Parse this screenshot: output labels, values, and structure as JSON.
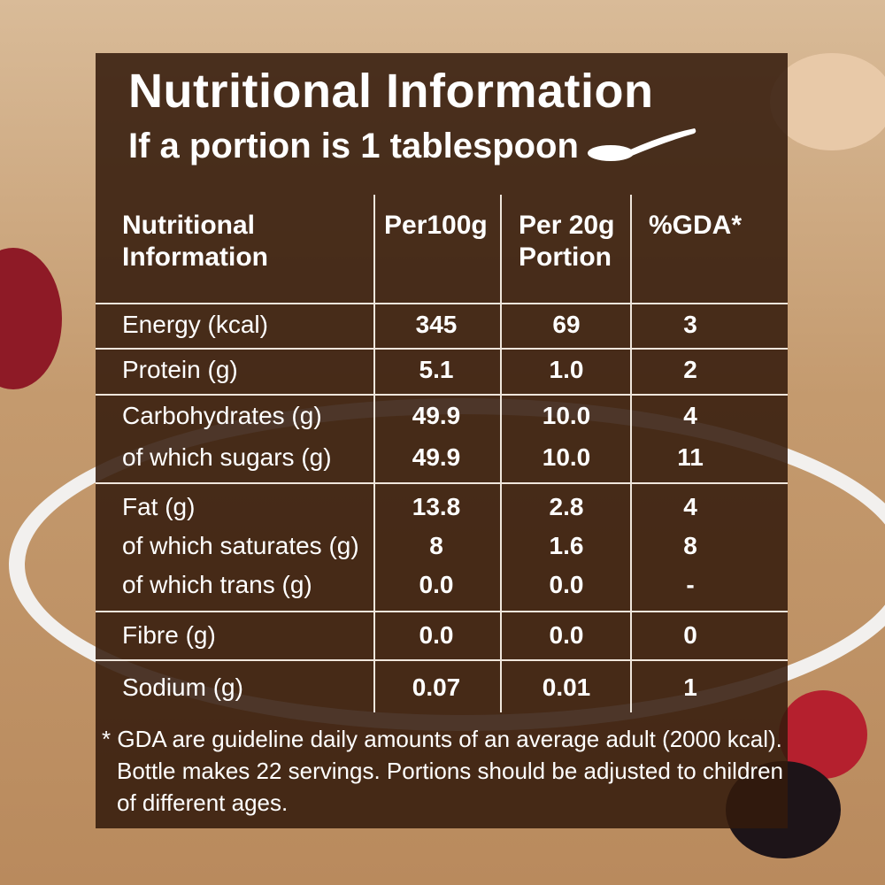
{
  "header": {
    "title": "Nutritional Information",
    "subtitle": "If a portion is 1 tablespoon"
  },
  "table": {
    "headers": [
      [
        "Nutritional",
        "Information"
      ],
      [
        "Per100g"
      ],
      [
        "Per 20g",
        "Portion"
      ],
      [
        "%GDA*"
      ]
    ],
    "groups": [
      [
        [
          "Energy (kcal)",
          "345",
          "69",
          "3"
        ]
      ],
      [
        [
          "Protein (g)",
          "5.1",
          "1.0",
          "2"
        ]
      ],
      [
        [
          "Carbohydrates (g)",
          "49.9",
          "10.0",
          "4"
        ],
        [
          "of which sugars (g)",
          "49.9",
          "10.0",
          "11"
        ]
      ],
      [
        [
          "Fat (g)",
          "13.8",
          "2.8",
          "4"
        ],
        [
          "of which saturates (g)",
          "8",
          "1.6",
          "8"
        ],
        [
          "of which trans (g)",
          "0.0",
          "0.0",
          "-"
        ]
      ],
      [
        [
          "Fibre (g)",
          "0.0",
          "0.0",
          "0"
        ]
      ],
      [
        [
          "Sodium (g)",
          "0.07",
          "0.01",
          "1"
        ]
      ]
    ]
  },
  "footnote": {
    "lines": [
      "* GDA are guideline daily amounts of an average adult (2000 kcal).",
      "Bottle  makes 22 servings. Portions should be adjusted to children",
      "of different ages."
    ]
  }
}
